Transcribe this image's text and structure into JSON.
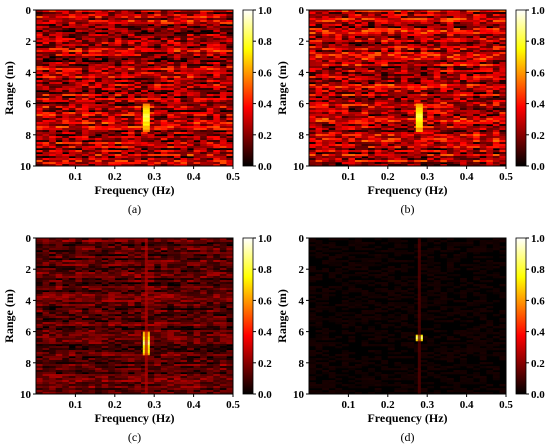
{
  "chart_data": [
    {
      "type": "heatmap",
      "panel_label": "(a)",
      "xlabel": "Frequency (Hz)",
      "ylabel": "Range (m)",
      "xlim": [
        0.0,
        0.5
      ],
      "ylim": [
        0,
        10
      ],
      "y_inverted": true,
      "xticks": [
        0.1,
        0.2,
        0.3,
        0.4,
        0.5
      ],
      "yticks": [
        0,
        2,
        4,
        6,
        8,
        10
      ],
      "colorbar": {
        "min": 0.0,
        "max": 1.0,
        "ticks": [
          "0.0",
          "0.2",
          "0.4",
          "0.6",
          "0.8",
          "1.0"
        ],
        "colormap": "hot"
      },
      "background_level": 0.3,
      "target": {
        "frequency": 0.28,
        "range_from": 6.0,
        "range_to": 7.8,
        "peak": 0.85
      }
    },
    {
      "type": "heatmap",
      "panel_label": "(b)",
      "xlabel": "Frequency (Hz)",
      "ylabel": "Range (m)",
      "xlim": [
        0.0,
        0.5
      ],
      "ylim": [
        0,
        10
      ],
      "y_inverted": true,
      "xticks": [
        0.1,
        0.2,
        0.3,
        0.4,
        0.5
      ],
      "yticks": [
        0,
        2,
        4,
        6,
        8,
        10
      ],
      "colorbar": {
        "min": 0.0,
        "max": 1.0,
        "ticks": [
          "0.0",
          "0.2",
          "0.4",
          "0.6",
          "0.8",
          "1.0"
        ],
        "colormap": "hot"
      },
      "background_level": 0.3,
      "target": {
        "frequency": 0.28,
        "range_from": 6.0,
        "range_to": 7.8,
        "peak": 0.85
      }
    },
    {
      "type": "heatmap",
      "panel_label": "(c)",
      "xlabel": "Frequency (Hz)",
      "ylabel": "Range (m)",
      "xlim": [
        0.0,
        0.5
      ],
      "ylim": [
        0,
        10
      ],
      "y_inverted": true,
      "xticks": [
        0.1,
        0.2,
        0.3,
        0.4,
        0.5
      ],
      "yticks": [
        0,
        2,
        4,
        6,
        8,
        10
      ],
      "colorbar": {
        "min": 0.0,
        "max": 1.0,
        "ticks": [
          "0.0",
          "0.2",
          "0.4",
          "0.6",
          "0.8",
          "1.0"
        ],
        "colormap": "hot"
      },
      "background_level": 0.15,
      "target": {
        "frequency": 0.28,
        "range_from": 6.0,
        "range_to": 7.5,
        "peak": 0.9
      }
    },
    {
      "type": "heatmap",
      "panel_label": "(d)",
      "xlabel": "Frequency (Hz)",
      "ylabel": "Range (m)",
      "xlim": [
        0.0,
        0.5
      ],
      "ylim": [
        0,
        10
      ],
      "y_inverted": true,
      "xticks": [
        0.1,
        0.2,
        0.3,
        0.4,
        0.5
      ],
      "yticks": [
        0,
        2,
        4,
        6,
        8,
        10
      ],
      "colorbar": {
        "min": 0.0,
        "max": 1.0,
        "ticks": [
          "0.0",
          "0.2",
          "0.4",
          "0.6",
          "0.8",
          "1.0"
        ],
        "colormap": "hot"
      },
      "background_level": 0.02,
      "target": {
        "frequency": 0.28,
        "range_from": 6.2,
        "range_to": 6.6,
        "peak": 0.95
      }
    }
  ]
}
